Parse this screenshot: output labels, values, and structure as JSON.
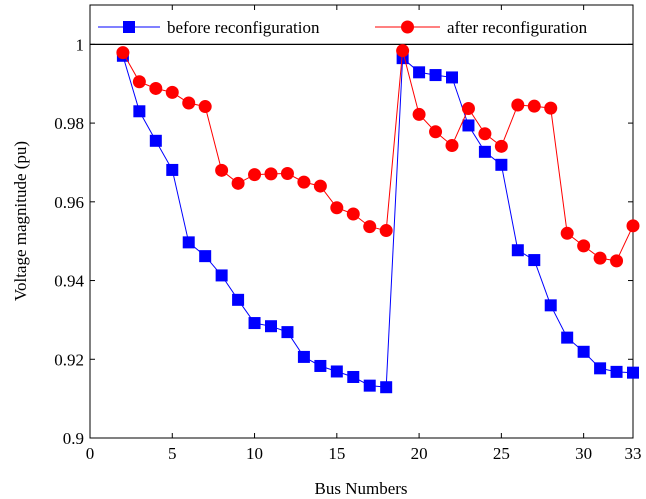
{
  "chart_data": {
    "type": "line",
    "xlabel": "Bus Numbers",
    "ylabel": "Voltage magnitude (pu)",
    "xlim": [
      0,
      33
    ],
    "ylim": [
      0.9,
      1.01
    ],
    "x_ticks": [
      "0",
      "5",
      "10",
      "15",
      "20",
      "25",
      "30",
      "33"
    ],
    "x_tick_values": [
      0,
      5,
      10,
      15,
      20,
      25,
      30,
      33
    ],
    "y_ticks": [
      "0.9",
      "0.92",
      "0.94",
      "0.96",
      "0.98",
      "1"
    ],
    "y_tick_values": [
      0.9,
      0.92,
      0.94,
      0.96,
      0.98,
      1.0
    ],
    "grid": false,
    "legend_position": "top",
    "x": [
      2,
      3,
      4,
      5,
      6,
      7,
      8,
      9,
      10,
      11,
      12,
      13,
      14,
      15,
      16,
      17,
      18,
      19,
      20,
      21,
      22,
      23,
      24,
      25,
      26,
      27,
      28,
      29,
      30,
      31,
      32,
      33
    ],
    "series": [
      {
        "name": "before reconfiguration",
        "color": "#0000ff",
        "marker": "square",
        "values": [
          0.9971,
          0.983,
          0.9755,
          0.9681,
          0.9497,
          0.9462,
          0.9413,
          0.9351,
          0.9292,
          0.9284,
          0.9269,
          0.9206,
          0.9183,
          0.9169,
          0.9155,
          0.9133,
          0.9129,
          0.9965,
          0.9929,
          0.9922,
          0.9916,
          0.9794,
          0.9727,
          0.9694,
          0.9477,
          0.9452,
          0.9337,
          0.9255,
          0.9219,
          0.9177,
          0.9168,
          0.9166
        ]
      },
      {
        "name": "after reconfiguration",
        "color": "#ff0000",
        "marker": "circle",
        "values": [
          0.9979,
          0.9905,
          0.9888,
          0.9878,
          0.9851,
          0.9842,
          0.968,
          0.9647,
          0.9669,
          0.9671,
          0.9672,
          0.965,
          0.964,
          0.9585,
          0.9569,
          0.9537,
          0.9527,
          0.9984,
          0.9822,
          0.9778,
          0.9743,
          0.9837,
          0.9773,
          0.9741,
          0.9846,
          0.9843,
          0.9838,
          0.952,
          0.9488,
          0.9457,
          0.945,
          0.9539
        ]
      }
    ]
  }
}
